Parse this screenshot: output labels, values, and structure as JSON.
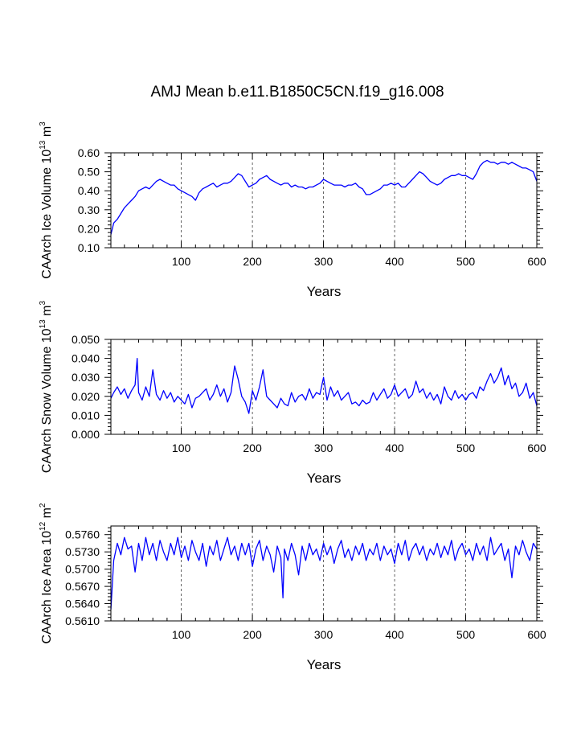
{
  "title": "AMJ Mean b.e11.B1850C5CN.f19_g16.008",
  "colors": {
    "line": "#0000ff",
    "axis": "#000000",
    "grid": "#000000"
  },
  "chart_data": [
    {
      "type": "line",
      "ylabel": {
        "text": "CAArch Ice Volume 10",
        "exp": "13",
        "unit": " m",
        "unit_exp": "3"
      },
      "xlabel": "Years",
      "xlim": [
        1,
        600
      ],
      "ylim": [
        0.1,
        0.6
      ],
      "xticks": [
        "100",
        "200",
        "300",
        "400",
        "500",
        "600"
      ],
      "yticks": [
        "0.10",
        "0.20",
        "0.30",
        "0.40",
        "0.50",
        "0.60"
      ],
      "grid": "vertical-dashed",
      "series": [
        {
          "x": [
            1,
            3,
            5,
            10,
            15,
            20,
            25,
            30,
            35,
            40,
            45,
            50,
            55,
            60,
            65,
            70,
            75,
            80,
            85,
            90,
            95,
            100,
            105,
            110,
            115,
            120,
            125,
            130,
            135,
            140,
            145,
            150,
            155,
            160,
            165,
            170,
            175,
            180,
            185,
            190,
            195,
            200,
            205,
            210,
            215,
            220,
            225,
            230,
            235,
            240,
            245,
            250,
            255,
            260,
            265,
            270,
            275,
            280,
            285,
            290,
            295,
            300,
            305,
            310,
            315,
            320,
            325,
            330,
            335,
            340,
            345,
            350,
            355,
            360,
            365,
            370,
            375,
            380,
            385,
            390,
            395,
            400,
            405,
            410,
            415,
            420,
            425,
            430,
            435,
            440,
            445,
            450,
            455,
            460,
            465,
            470,
            475,
            480,
            485,
            490,
            495,
            500,
            505,
            510,
            515,
            520,
            525,
            530,
            535,
            540,
            545,
            550,
            555,
            560,
            565,
            570,
            575,
            580,
            585,
            590,
            595,
            600
          ],
          "values": [
            0.17,
            0.2,
            0.23,
            0.25,
            0.28,
            0.31,
            0.33,
            0.35,
            0.37,
            0.4,
            0.41,
            0.42,
            0.41,
            0.43,
            0.45,
            0.46,
            0.45,
            0.44,
            0.43,
            0.43,
            0.41,
            0.4,
            0.39,
            0.38,
            0.37,
            0.35,
            0.39,
            0.41,
            0.42,
            0.43,
            0.44,
            0.42,
            0.43,
            0.44,
            0.44,
            0.45,
            0.47,
            0.49,
            0.48,
            0.45,
            0.42,
            0.43,
            0.44,
            0.46,
            0.47,
            0.48,
            0.46,
            0.45,
            0.44,
            0.43,
            0.44,
            0.44,
            0.42,
            0.43,
            0.42,
            0.42,
            0.41,
            0.42,
            0.42,
            0.43,
            0.44,
            0.46,
            0.45,
            0.44,
            0.43,
            0.43,
            0.43,
            0.42,
            0.43,
            0.43,
            0.44,
            0.42,
            0.41,
            0.38,
            0.38,
            0.39,
            0.4,
            0.41,
            0.43,
            0.43,
            0.44,
            0.43,
            0.44,
            0.42,
            0.42,
            0.44,
            0.46,
            0.48,
            0.5,
            0.49,
            0.47,
            0.45,
            0.44,
            0.43,
            0.44,
            0.46,
            0.47,
            0.48,
            0.48,
            0.49,
            0.48,
            0.48,
            0.47,
            0.46,
            0.49,
            0.53,
            0.55,
            0.56,
            0.55,
            0.55,
            0.54,
            0.55,
            0.55,
            0.54,
            0.55,
            0.54,
            0.53,
            0.52,
            0.52,
            0.51,
            0.5,
            0.45
          ]
        }
      ]
    },
    {
      "type": "line",
      "ylabel": {
        "text": "CAArch Snow Volume 10",
        "exp": "13",
        "unit": " m",
        "unit_exp": "3"
      },
      "xlabel": "Years",
      "xlim": [
        1,
        600
      ],
      "ylim": [
        0.0,
        0.05
      ],
      "xticks": [
        "100",
        "200",
        "300",
        "400",
        "500",
        "600"
      ],
      "yticks": [
        "0.000",
        "0.010",
        "0.020",
        "0.030",
        "0.040",
        "0.050"
      ],
      "grid": "vertical-dashed",
      "series": [
        {
          "x": [
            1,
            5,
            10,
            15,
            20,
            25,
            30,
            35,
            38,
            40,
            45,
            50,
            55,
            60,
            65,
            70,
            75,
            80,
            85,
            90,
            95,
            100,
            105,
            110,
            115,
            120,
            125,
            130,
            135,
            140,
            145,
            150,
            155,
            160,
            165,
            170,
            175,
            180,
            185,
            190,
            195,
            200,
            205,
            210,
            215,
            220,
            225,
            230,
            235,
            240,
            245,
            250,
            255,
            260,
            265,
            270,
            275,
            280,
            285,
            290,
            295,
            300,
            305,
            310,
            315,
            320,
            325,
            330,
            335,
            340,
            345,
            350,
            355,
            360,
            365,
            370,
            375,
            380,
            385,
            390,
            395,
            400,
            405,
            410,
            415,
            420,
            425,
            430,
            435,
            440,
            445,
            450,
            455,
            460,
            465,
            470,
            475,
            480,
            485,
            490,
            495,
            500,
            505,
            510,
            515,
            520,
            525,
            530,
            535,
            540,
            545,
            550,
            555,
            560,
            565,
            570,
            575,
            580,
            585,
            590,
            595,
            600
          ],
          "values": [
            0.019,
            0.022,
            0.025,
            0.021,
            0.024,
            0.019,
            0.023,
            0.026,
            0.04,
            0.022,
            0.018,
            0.025,
            0.02,
            0.034,
            0.021,
            0.018,
            0.023,
            0.019,
            0.022,
            0.017,
            0.02,
            0.018,
            0.016,
            0.021,
            0.014,
            0.019,
            0.02,
            0.022,
            0.024,
            0.018,
            0.021,
            0.026,
            0.02,
            0.024,
            0.017,
            0.022,
            0.036,
            0.029,
            0.02,
            0.017,
            0.011,
            0.023,
            0.018,
            0.025,
            0.034,
            0.02,
            0.018,
            0.016,
            0.014,
            0.019,
            0.016,
            0.015,
            0.022,
            0.017,
            0.02,
            0.021,
            0.018,
            0.024,
            0.019,
            0.022,
            0.021,
            0.03,
            0.018,
            0.025,
            0.02,
            0.023,
            0.018,
            0.02,
            0.022,
            0.016,
            0.017,
            0.015,
            0.018,
            0.016,
            0.017,
            0.022,
            0.018,
            0.021,
            0.024,
            0.019,
            0.021,
            0.026,
            0.02,
            0.022,
            0.024,
            0.019,
            0.021,
            0.028,
            0.022,
            0.024,
            0.019,
            0.022,
            0.018,
            0.021,
            0.016,
            0.025,
            0.02,
            0.018,
            0.023,
            0.019,
            0.021,
            0.018,
            0.021,
            0.022,
            0.019,
            0.025,
            0.023,
            0.028,
            0.032,
            0.027,
            0.03,
            0.035,
            0.026,
            0.031,
            0.024,
            0.027,
            0.02,
            0.022,
            0.027,
            0.019,
            0.022,
            0.015
          ]
        }
      ]
    },
    {
      "type": "line",
      "ylabel": {
        "text": "CAArch Ice Area 10",
        "exp": "12",
        "unit": " m",
        "unit_exp": "2"
      },
      "xlabel": "Years",
      "xlim": [
        1,
        600
      ],
      "ylim": [
        0.561,
        0.5775
      ],
      "xticks": [
        "100",
        "200",
        "300",
        "400",
        "500",
        "600"
      ],
      "yticks": [
        "0.5610",
        "0.5640",
        "0.5670",
        "0.5700",
        "0.5730",
        "0.5760"
      ],
      "grid": "vertical-dashed",
      "series": [
        {
          "x": [
            1,
            5,
            10,
            15,
            20,
            25,
            30,
            35,
            40,
            45,
            50,
            55,
            60,
            65,
            70,
            75,
            80,
            85,
            90,
            95,
            100,
            105,
            110,
            115,
            120,
            125,
            130,
            135,
            140,
            145,
            150,
            155,
            160,
            165,
            170,
            175,
            180,
            185,
            190,
            195,
            200,
            205,
            210,
            215,
            220,
            225,
            230,
            235,
            240,
            243,
            245,
            250,
            255,
            260,
            265,
            270,
            275,
            280,
            285,
            290,
            295,
            300,
            305,
            310,
            315,
            320,
            325,
            330,
            335,
            340,
            345,
            350,
            355,
            360,
            365,
            370,
            375,
            380,
            385,
            390,
            395,
            400,
            405,
            410,
            415,
            420,
            425,
            430,
            435,
            440,
            445,
            450,
            455,
            460,
            465,
            470,
            475,
            480,
            485,
            490,
            495,
            500,
            505,
            510,
            515,
            520,
            525,
            530,
            535,
            540,
            545,
            550,
            555,
            560,
            565,
            570,
            575,
            580,
            585,
            590,
            595,
            600
          ],
          "values": [
            0.563,
            0.5715,
            0.5745,
            0.5725,
            0.5755,
            0.5735,
            0.574,
            0.5695,
            0.5745,
            0.5715,
            0.5755,
            0.5725,
            0.5745,
            0.5715,
            0.575,
            0.573,
            0.5715,
            0.5745,
            0.5725,
            0.5755,
            0.572,
            0.574,
            0.5715,
            0.575,
            0.573,
            0.5715,
            0.5745,
            0.5705,
            0.574,
            0.5725,
            0.575,
            0.5715,
            0.5735,
            0.5755,
            0.5725,
            0.574,
            0.5715,
            0.5745,
            0.5725,
            0.5745,
            0.5705,
            0.5735,
            0.575,
            0.5715,
            0.574,
            0.5725,
            0.5695,
            0.574,
            0.572,
            0.565,
            0.5735,
            0.5715,
            0.5745,
            0.5725,
            0.569,
            0.574,
            0.5715,
            0.5745,
            0.5725,
            0.5735,
            0.5715,
            0.5745,
            0.5725,
            0.574,
            0.571,
            0.5735,
            0.575,
            0.572,
            0.5735,
            0.5715,
            0.574,
            0.5725,
            0.5745,
            0.5715,
            0.5735,
            0.5725,
            0.5745,
            0.5715,
            0.574,
            0.5725,
            0.5735,
            0.571,
            0.5745,
            0.5725,
            0.575,
            0.5715,
            0.5735,
            0.5745,
            0.5725,
            0.574,
            0.5715,
            0.5735,
            0.5725,
            0.5745,
            0.572,
            0.574,
            0.5725,
            0.575,
            0.5715,
            0.5735,
            0.5745,
            0.5725,
            0.5735,
            0.5715,
            0.5745,
            0.5725,
            0.574,
            0.5715,
            0.5755,
            0.5725,
            0.5735,
            0.5745,
            0.5715,
            0.5735,
            0.5685,
            0.574,
            0.5725,
            0.575,
            0.573,
            0.5715,
            0.5745,
            0.5735
          ]
        }
      ]
    }
  ]
}
